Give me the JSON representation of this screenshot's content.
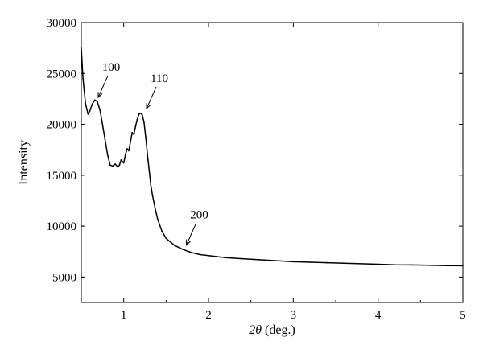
{
  "chart_data": {
    "type": "line",
    "title": "",
    "xlabel_var": "2θ",
    "xlabel_unit": " (deg.)",
    "ylabel": "Intensity",
    "xlim": [
      0.5,
      5
    ],
    "ylim": [
      2500,
      30000
    ],
    "x_ticks": [
      1,
      2,
      3,
      4,
      5
    ],
    "x_tick_labels": [
      "1",
      "2",
      "3",
      "4",
      "5"
    ],
    "y_ticks": [
      5000,
      10000,
      15000,
      20000,
      25000,
      30000
    ],
    "y_tick_labels": [
      "5000",
      "10000",
      "15000",
      "20000",
      "25000",
      "30000"
    ],
    "grid": false,
    "legend": "none",
    "line_color": "#000000",
    "series": [
      {
        "x": [
          0.5,
          0.52,
          0.55,
          0.58,
          0.6,
          0.63,
          0.66,
          0.69,
          0.72,
          0.75,
          0.78,
          0.81,
          0.84,
          0.87,
          0.9,
          0.93,
          0.95,
          0.97,
          1.0,
          1.02,
          1.04,
          1.06,
          1.08,
          1.1,
          1.12,
          1.14,
          1.16,
          1.18,
          1.2,
          1.22,
          1.24,
          1.26,
          1.28,
          1.3,
          1.32,
          1.34,
          1.37,
          1.4,
          1.45,
          1.5,
          1.6,
          1.7,
          1.8,
          1.9,
          2.0,
          2.2,
          2.4,
          2.6,
          2.8,
          3.0,
          3.2,
          3.4,
          3.6,
          3.8,
          4.0,
          4.2,
          4.4,
          4.6,
          4.8,
          5.0
        ],
        "y": [
          27500,
          24500,
          22000,
          21000,
          21300,
          22000,
          22400,
          22200,
          21400,
          20000,
          18500,
          17000,
          16000,
          15900,
          16100,
          15800,
          16000,
          16500,
          16200,
          17000,
          17600,
          17400,
          18300,
          19200,
          19000,
          19800,
          20500,
          21000,
          21100,
          20900,
          20200,
          18700,
          17000,
          15500,
          14000,
          13000,
          11800,
          10700,
          9500,
          8800,
          8100,
          7700,
          7400,
          7200,
          7100,
          6900,
          6800,
          6700,
          6600,
          6500,
          6450,
          6400,
          6350,
          6300,
          6250,
          6200,
          6180,
          6150,
          6120,
          6100
        ]
      }
    ],
    "annotations": [
      {
        "text": "100",
        "x": 0.68,
        "y": 22400
      },
      {
        "text": "110",
        "x": 1.25,
        "y": 21300
      },
      {
        "text": "200",
        "x": 1.72,
        "y": 7900
      }
    ]
  }
}
